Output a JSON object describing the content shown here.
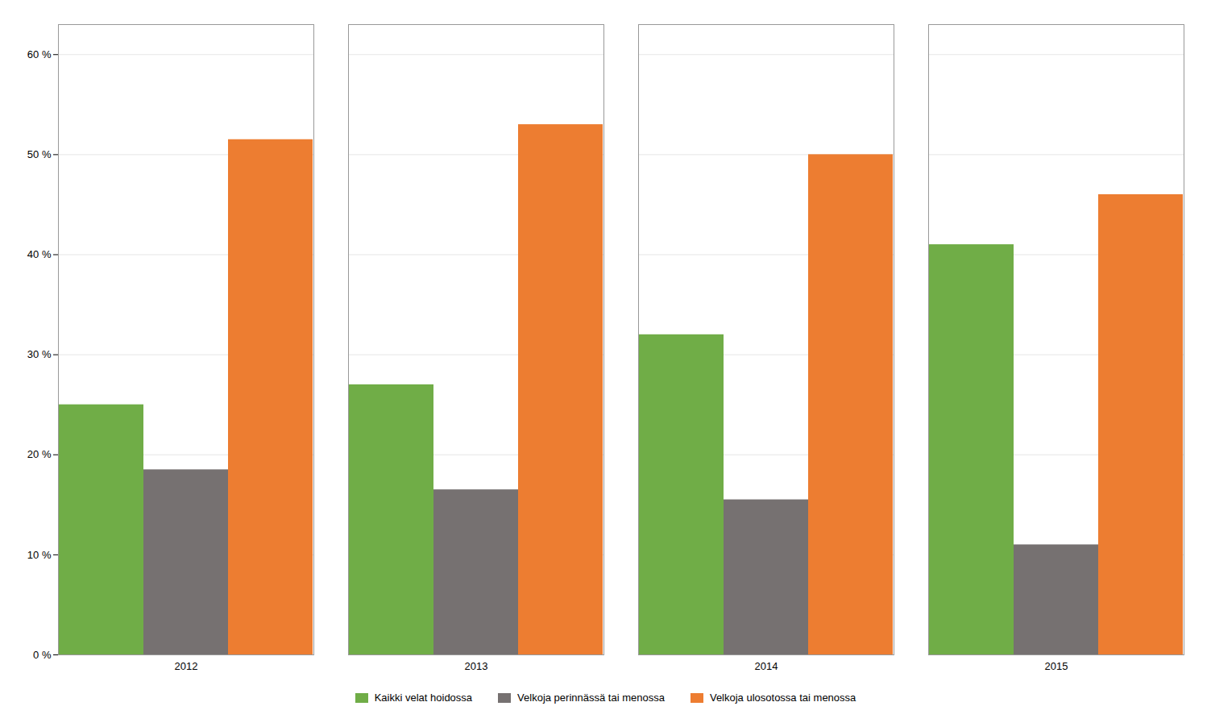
{
  "chart_data": {
    "type": "bar",
    "categories": [
      "2012",
      "2013",
      "2014",
      "2015"
    ],
    "series": [
      {
        "name": "Kaikki velat hoidossa",
        "color": "#70ad47",
        "values": [
          25,
          27,
          32,
          41
        ]
      },
      {
        "name": "Velkoja perinnässä tai menossa",
        "color": "#767171",
        "values": [
          18.5,
          16.5,
          15.5,
          11
        ]
      },
      {
        "name": "Velkoja ulosotossa tai menossa",
        "color": "#ed7d31",
        "values": [
          51.5,
          53,
          50,
          46
        ]
      }
    ],
    "ylim": [
      0,
      63
    ],
    "yticks": [
      {
        "value": 0,
        "label": "0 %"
      },
      {
        "value": 10,
        "label": "10 %"
      },
      {
        "value": 20,
        "label": "20 %"
      },
      {
        "value": 30,
        "label": "30 %"
      },
      {
        "value": 40,
        "label": "40 %"
      },
      {
        "value": 50,
        "label": "50 %"
      },
      {
        "value": 60,
        "label": "60 %"
      }
    ],
    "grid": true,
    "legend": "bottom"
  }
}
